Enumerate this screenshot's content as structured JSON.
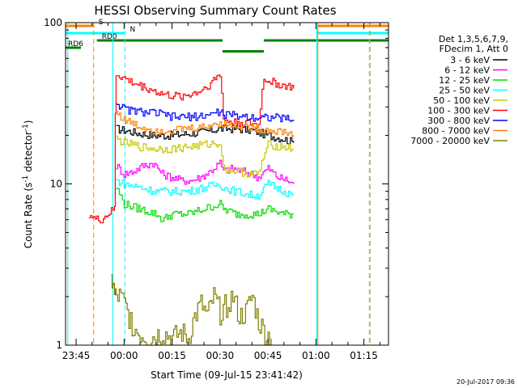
{
  "chart_data": {
    "type": "line",
    "title": "HESSI Observing Summary Count Rates",
    "xlabel": "Start Time (09-Jul-15 23:41:42)",
    "ylabel": "Count Rate (s⁻¹ detector⁻¹)",
    "ylabel_parts": [
      "Count Rate (s",
      "-1",
      " detector",
      "-1",
      ")"
    ],
    "yscale": "log",
    "ylim": [
      1,
      100
    ],
    "xlim_minutes": [
      -18.3,
      82.7
    ],
    "ytick_labels": [
      "1",
      "10",
      "100"
    ],
    "xticks": [
      {
        "label": "23:45",
        "t": -15
      },
      {
        "label": "00:00",
        "t": 0
      },
      {
        "label": "00:15",
        "t": 15
      },
      {
        "label": "00:30",
        "t": 30
      },
      {
        "label": "00:45",
        "t": 45
      },
      {
        "label": "01:00",
        "t": 60
      },
      {
        "label": "01:15",
        "t": 75
      }
    ],
    "legend": {
      "position": "right",
      "header": [
        "Det 1,3,5,6,7,9,",
        "FDecim 1, Att 0"
      ],
      "entries": [
        {
          "label": "3 - 6 keV",
          "color": "#000000"
        },
        {
          "label": "6 - 12 keV",
          "color": "#ff00ff"
        },
        {
          "label": "12 - 25 keV",
          "color": "#00dd00"
        },
        {
          "label": "25 - 50 keV",
          "color": "#00ffff"
        },
        {
          "label": "50 - 100 keV",
          "color": "#c8c800"
        },
        {
          "label": "100 - 300 keV",
          "color": "#ff0000"
        },
        {
          "label": "300 - 800 keV",
          "color": "#0000ff"
        },
        {
          "label": "800 - 7000 keV",
          "color": "#ff8000"
        },
        {
          "label": "7000 - 20000 keV",
          "color": "#808000"
        }
      ]
    },
    "flags": [
      {
        "label": "S",
        "color": "#ff8000",
        "level": 1,
        "intervals": [
          [
            -18.3,
            -9.5
          ],
          [
            60.5,
            82.7
          ]
        ]
      },
      {
        "label": "N",
        "color": "#00ffff",
        "level": 2,
        "intervals": [
          [
            -18.3,
            0.3
          ],
          [
            60.3,
            82.7
          ]
        ]
      },
      {
        "label": "RD0",
        "color": "#008000",
        "level": 3,
        "intervals": [
          [
            -8.5,
            30.8
          ],
          [
            43.7,
            82.7
          ]
        ]
      },
      {
        "label": "RD6",
        "color": "#008000",
        "level": 4,
        "intervals": [
          [
            -18.3,
            -13.5
          ]
        ]
      },
      {
        "label": "",
        "color": "#008000",
        "level": 4.5,
        "intervals": [
          [
            30.8,
            43.7
          ]
        ]
      }
    ],
    "vlines": [
      {
        "t": -9.5,
        "color": "#ff8000",
        "style": "dashed"
      },
      {
        "t": 0.3,
        "color": "#00ffff",
        "style": "dashed"
      },
      {
        "t": -3.5,
        "color": "#00ffff",
        "style": "solid"
      },
      {
        "t": -17.6,
        "color": "#00ffff",
        "style": "solid"
      },
      {
        "t": 60.3,
        "color": "#00ffff",
        "style": "solid"
      },
      {
        "t": 60.6,
        "color": "#ff8000",
        "style": "solid"
      },
      {
        "t": 76.7,
        "color": "#00ffff",
        "style": "dashed"
      },
      {
        "t": 76.9,
        "color": "#ff8000",
        "style": "dashed"
      }
    ],
    "series": [
      {
        "name": "3 - 6 keV",
        "color": "#000000",
        "x": [
          -2.5,
          0,
          5,
          10,
          15,
          20,
          25,
          30,
          31,
          35,
          40,
          45,
          50,
          53
        ],
        "y": [
          22,
          21.5,
          20.5,
          20,
          20,
          20.5,
          21,
          22,
          22,
          22,
          21.5,
          20,
          19,
          18
        ]
      },
      {
        "name": "6 - 12 keV",
        "color": "#ff00ff",
        "x": [
          -2.5,
          0,
          3,
          6,
          9,
          12,
          15,
          18,
          21,
          24,
          27,
          30,
          31,
          34,
          37,
          40,
          42,
          45,
          48,
          51,
          53
        ],
        "y": [
          13,
          11.5,
          12,
          13,
          13.5,
          11.5,
          11,
          10.5,
          10.5,
          11,
          12,
          13.5,
          12,
          12.5,
          12,
          11.5,
          11,
          12.5,
          11,
          10.5,
          10
        ]
      },
      {
        "name": "12 - 25 keV",
        "color": "#00dd00",
        "x": [
          -2.5,
          0,
          5,
          10,
          12,
          15,
          20,
          25,
          30,
          31,
          35,
          40,
          42,
          45,
          50,
          53
        ],
        "y": [
          9.5,
          7.5,
          7,
          6.5,
          6,
          6.5,
          6.5,
          7,
          7.5,
          7,
          6.5,
          6.5,
          6.5,
          7,
          6.5,
          6.5
        ]
      },
      {
        "name": "25 - 50 keV",
        "color": "#00ffff",
        "x": [
          -2.5,
          0,
          5,
          10,
          15,
          20,
          25,
          30,
          31,
          35,
          40,
          42,
          45,
          50,
          53
        ],
        "y": [
          10.5,
          10,
          9.5,
          9,
          9,
          9,
          9.5,
          10,
          9.5,
          9,
          8.5,
          8.5,
          10,
          9,
          8.5
        ]
      },
      {
        "name": "50 - 100 keV",
        "color": "#c8c800",
        "x": [
          -2.5,
          0,
          5,
          10,
          15,
          20,
          25,
          30,
          31,
          35,
          40,
          42,
          45,
          50,
          53
        ],
        "y": [
          19,
          18,
          17,
          16.5,
          16.5,
          17,
          17.5,
          18,
          12.5,
          12,
          11.5,
          11.5,
          17.5,
          17,
          16.5
        ]
      },
      {
        "name": "100 - 300 keV",
        "color": "#ff0000",
        "x": [
          -11,
          -9,
          -7,
          -5,
          -3,
          -2.5,
          0,
          3,
          6,
          9,
          12,
          15,
          18,
          21,
          24,
          27,
          30,
          31,
          34,
          37,
          40,
          42,
          43.7,
          46,
          49,
          52,
          53
        ],
        "y": [
          6.5,
          6,
          6,
          6.5,
          7,
          48,
          45,
          42,
          40,
          38,
          36,
          35,
          35,
          36,
          38,
          42,
          48,
          25,
          24,
          24,
          23.5,
          23,
          45,
          43,
          41,
          40,
          39
        ]
      },
      {
        "name": "300 - 800 keV",
        "color": "#0000ff",
        "x": [
          -2.5,
          0,
          5,
          10,
          15,
          20,
          25,
          30,
          31,
          35,
          40,
          42,
          45,
          50,
          53
        ],
        "y": [
          32,
          29,
          28,
          27.5,
          26,
          26,
          26.5,
          28,
          27,
          26.5,
          26,
          26,
          26,
          25.5,
          25
        ]
      },
      {
        "name": "800 - 7000 keV",
        "color": "#ff8000",
        "x": [
          -2.5,
          0,
          5,
          10,
          15,
          20,
          25,
          30,
          31,
          35,
          40,
          42,
          45,
          50,
          53
        ],
        "y": [
          28,
          25,
          22.5,
          21.5,
          21.5,
          22,
          22.5,
          24,
          23.5,
          23,
          22.5,
          22,
          21.5,
          21,
          20
        ]
      },
      {
        "name": "7000 - 20000 keV",
        "color": "#808000",
        "x": [
          -4,
          -3.5,
          -3,
          -2.5,
          -1.5,
          0,
          1.5,
          4,
          8,
          12,
          15,
          18,
          20,
          22,
          24,
          26,
          28,
          30,
          32,
          34,
          36,
          38,
          40,
          42,
          44,
          46
        ],
        "y": [
          2.5,
          2.5,
          2,
          2,
          2,
          1.8,
          1.5,
          1.2,
          1.1,
          1.2,
          1.1,
          1.2,
          1.1,
          1.5,
          1.8,
          1.5,
          2,
          1.6,
          1.8,
          2,
          1.5,
          1.6,
          2,
          1.4,
          1.2,
          1.1
        ]
      }
    ]
  },
  "timestamp": "20-Jul-2017 09:36"
}
